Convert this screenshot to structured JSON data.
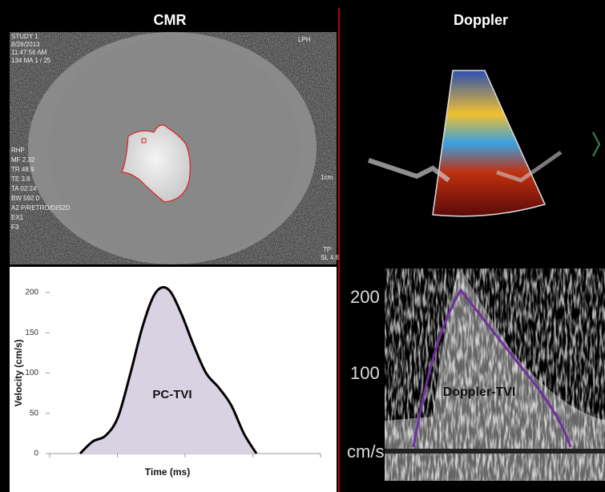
{
  "headers": {
    "left": "CMR",
    "right": "Doppler"
  },
  "cmr": {
    "overlay_left": [
      "STUDY 1",
      "8/28/2013",
      "11:47:56 AM",
      "134 MA 1 / 25"
    ],
    "overlay_mid_left": [
      "RHP",
      "MF 2.32",
      "TR 48.9",
      "TE 3.8",
      "TA 02:24",
      "BW 592.0",
      "A2 P/RETRO/DIS2D",
      "EX1",
      "F3"
    ],
    "overlay_right": [
      "LPH",
      "1cm",
      "TP",
      "SL 4.6"
    ]
  },
  "doppler": {
    "scale_labels": [
      "200",
      "100",
      "cm/s"
    ],
    "annotation": "Doppler-TVI"
  },
  "chart_data": {
    "type": "area",
    "xlabel": "Time (ms)",
    "ylabel": "Velocity (cm/s)",
    "annotation": "PC-TVI",
    "values": [
      0,
      15,
      22,
      45,
      100,
      160,
      200,
      204,
      175,
      135,
      100,
      82,
      60,
      25,
      0
    ],
    "color": "#d9d2e3",
    "line_color": "#000000",
    "ylim": [
      0,
      220
    ],
    "yticks": [
      0,
      50,
      100,
      150,
      200
    ]
  }
}
